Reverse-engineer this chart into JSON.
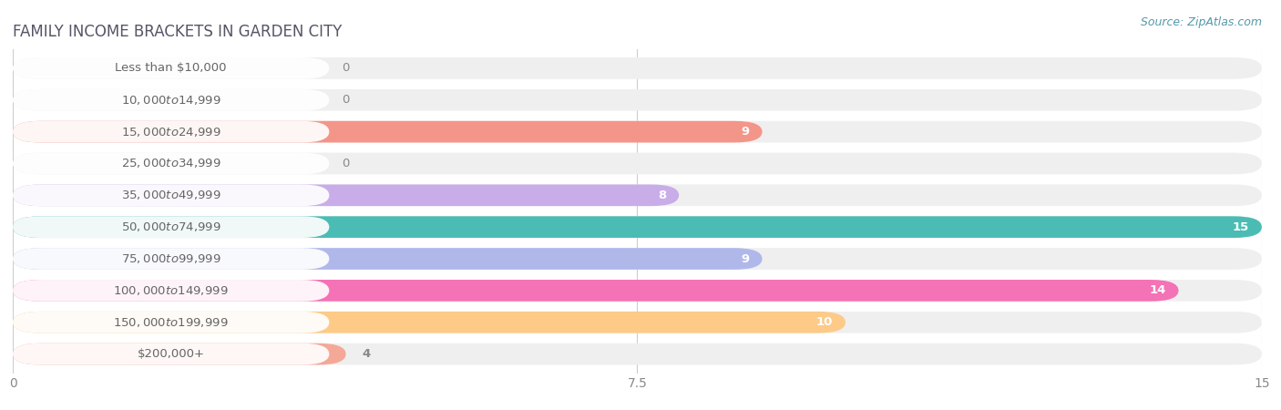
{
  "title": "FAMILY INCOME BRACKETS IN GARDEN CITY",
  "source": "Source: ZipAtlas.com",
  "categories": [
    "Less than $10,000",
    "$10,000 to $14,999",
    "$15,000 to $24,999",
    "$25,000 to $34,999",
    "$35,000 to $49,999",
    "$50,000 to $74,999",
    "$75,000 to $99,999",
    "$100,000 to $149,999",
    "$150,000 to $199,999",
    "$200,000+"
  ],
  "values": [
    0,
    0,
    9,
    0,
    8,
    15,
    9,
    14,
    10,
    4
  ],
  "bar_colors": [
    "#F9A8C0",
    "#FBCFA0",
    "#F4958A",
    "#A8C4E8",
    "#C8ADE8",
    "#4BBCB4",
    "#B0B8EA",
    "#F472B6",
    "#FDCA88",
    "#F4A898"
  ],
  "bg_track_color": "#EFEFEF",
  "xlim": [
    0,
    15
  ],
  "xticks": [
    0,
    7.5,
    15
  ],
  "background_color": "#FFFFFF",
  "title_fontsize": 12,
  "label_fontsize": 9.5,
  "tick_fontsize": 10,
  "bar_height": 0.68,
  "value_label_color_inside": "#FFFFFF",
  "value_label_color_outside": "#888888",
  "label_bg_color": "#FFFFFF",
  "title_color": "#555566",
  "source_color": "#5599AA"
}
